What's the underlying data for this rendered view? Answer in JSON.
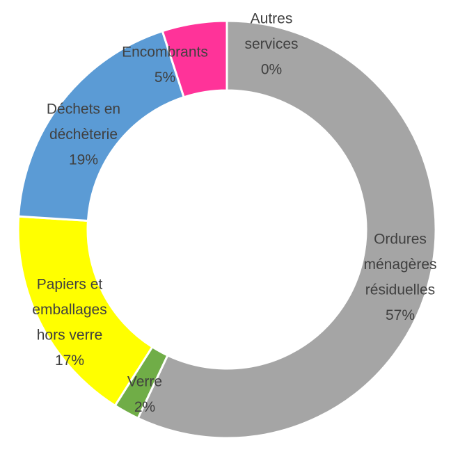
{
  "chart_data": {
    "type": "donut",
    "categories": [
      [
        "Autres",
        "services"
      ],
      [
        "Ordures",
        "ménagères",
        "résiduelles"
      ],
      [
        "Verre"
      ],
      [
        "Papiers et",
        "emballages",
        "hors verre"
      ],
      [
        "Déchets en",
        "déchèterie"
      ],
      [
        "Encombrants"
      ]
    ],
    "values": [
      0,
      57,
      2,
      17,
      19,
      5
    ],
    "value_labels": [
      "0%",
      "57%",
      "2%",
      "17%",
      "19%",
      "5%"
    ],
    "colors": [
      "#4472c4",
      "#a5a5a5",
      "#70ad47",
      "#ffff00",
      "#5b9bd5",
      "#ff3399"
    ]
  }
}
